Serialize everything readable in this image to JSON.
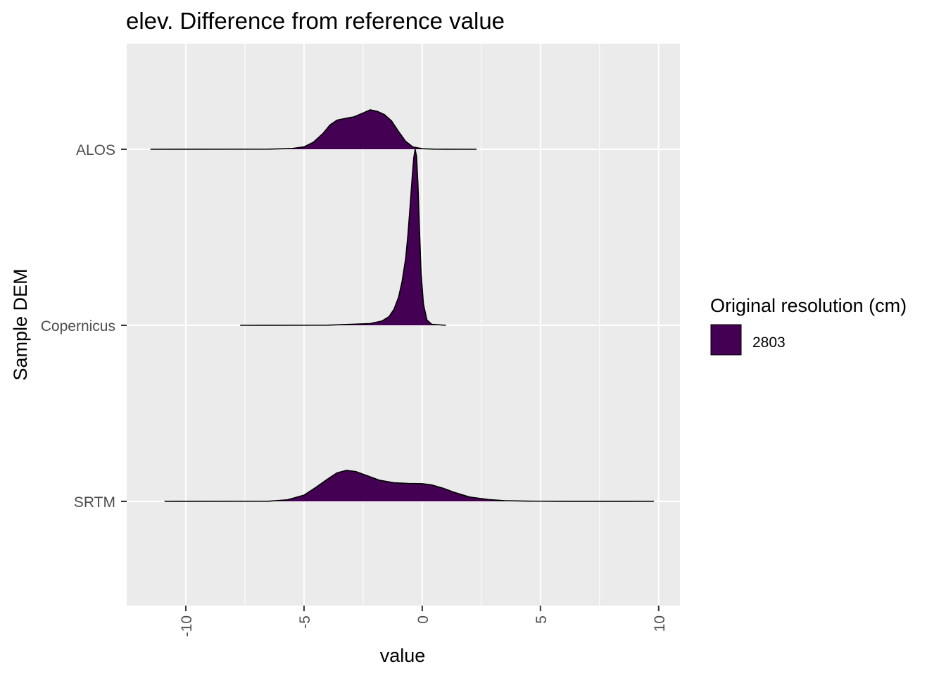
{
  "chart_data": {
    "type": "area",
    "subtype": "ridgeline density",
    "title": "elev. Difference from reference value",
    "xlabel": "value",
    "ylabel": "Sample DEM",
    "xlim": [
      -12.5,
      10.9
    ],
    "x_ticks": [
      -10,
      -5,
      0,
      5,
      10
    ],
    "x_tick_labels": [
      "-10",
      "-5",
      "0",
      "5",
      "10"
    ],
    "categories": [
      "ALOS",
      "Copernicus",
      "SRTM"
    ],
    "grid": true,
    "legend": {
      "title": "Original resolution (cm)",
      "position": "right",
      "entries": [
        {
          "label": "2803",
          "color": "#440154"
        }
      ]
    },
    "fill_color": "#440154",
    "background": "#ebebeb",
    "series": [
      {
        "category": "ALOS",
        "points": [
          [
            -11.5,
            0
          ],
          [
            -6.5,
            0.003
          ],
          [
            -5.5,
            0.02
          ],
          [
            -5,
            0.06
          ],
          [
            -4.6,
            0.18
          ],
          [
            -4.2,
            0.4
          ],
          [
            -3.9,
            0.62
          ],
          [
            -3.6,
            0.74
          ],
          [
            -3.2,
            0.79
          ],
          [
            -2.9,
            0.82
          ],
          [
            -2.5,
            0.92
          ],
          [
            -2.2,
            1.0
          ],
          [
            -1.9,
            0.96
          ],
          [
            -1.6,
            0.88
          ],
          [
            -1.3,
            0.72
          ],
          [
            -1.0,
            0.45
          ],
          [
            -0.7,
            0.2
          ],
          [
            -0.4,
            0.06
          ],
          [
            0,
            0.015
          ],
          [
            0.5,
            0.003
          ],
          [
            1,
            0.001
          ],
          [
            2.3,
            0
          ]
        ]
      },
      {
        "category": "Copernicus",
        "points": [
          [
            -7.7,
            0
          ],
          [
            -4,
            0.001
          ],
          [
            -2.2,
            0.01
          ],
          [
            -1.7,
            0.025
          ],
          [
            -1.4,
            0.05
          ],
          [
            -1.2,
            0.09
          ],
          [
            -1.0,
            0.16
          ],
          [
            -0.85,
            0.25
          ],
          [
            -0.7,
            0.38
          ],
          [
            -0.6,
            0.52
          ],
          [
            -0.5,
            0.7
          ],
          [
            -0.42,
            0.85
          ],
          [
            -0.36,
            0.95
          ],
          [
            -0.3,
            1.0
          ],
          [
            -0.24,
            0.96
          ],
          [
            -0.18,
            0.8
          ],
          [
            -0.12,
            0.56
          ],
          [
            -0.05,
            0.3
          ],
          [
            0.05,
            0.12
          ],
          [
            0.2,
            0.03
          ],
          [
            0.4,
            0.006
          ],
          [
            1.0,
            0
          ]
        ]
      },
      {
        "category": "SRTM",
        "points": [
          [
            -10.9,
            0
          ],
          [
            -6.5,
            0.005
          ],
          [
            -5.7,
            0.05
          ],
          [
            -5.0,
            0.2
          ],
          [
            -4.5,
            0.45
          ],
          [
            -4.0,
            0.72
          ],
          [
            -3.6,
            0.92
          ],
          [
            -3.2,
            1.0
          ],
          [
            -2.8,
            0.96
          ],
          [
            -2.3,
            0.82
          ],
          [
            -1.8,
            0.68
          ],
          [
            -1.2,
            0.6
          ],
          [
            -0.6,
            0.58
          ],
          [
            0,
            0.57
          ],
          [
            0.4,
            0.53
          ],
          [
            0.9,
            0.42
          ],
          [
            1.4,
            0.28
          ],
          [
            2,
            0.14
          ],
          [
            2.8,
            0.06
          ],
          [
            3.5,
            0.02
          ],
          [
            4.5,
            0.006
          ],
          [
            6,
            0.002
          ],
          [
            9.8,
            0
          ]
        ]
      }
    ]
  }
}
